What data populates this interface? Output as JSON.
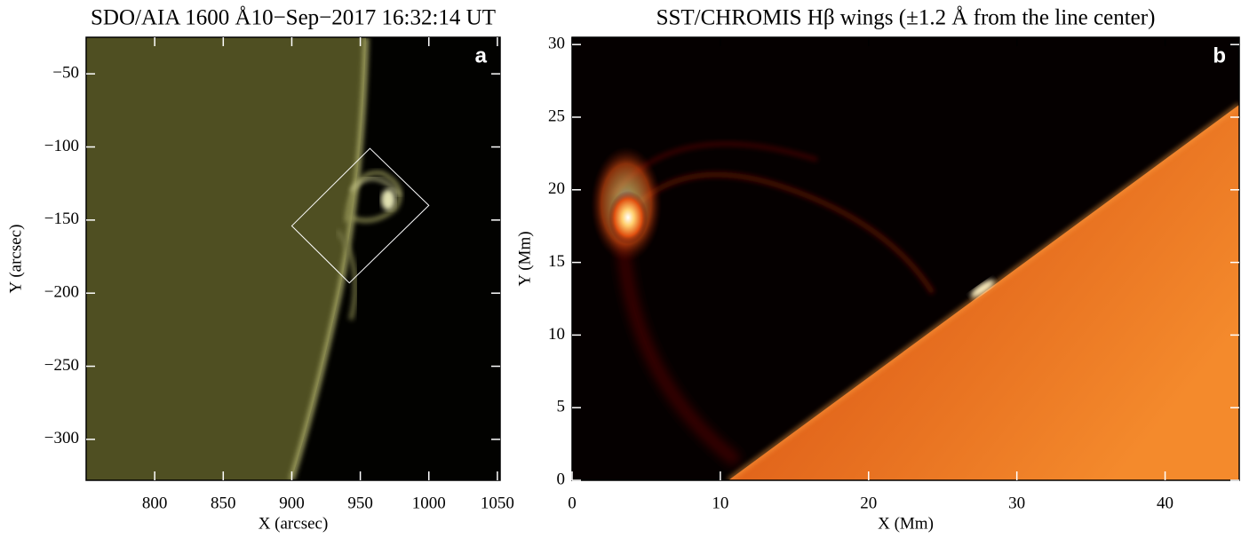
{
  "chart_data": [
    {
      "type": "image",
      "title": "SDO/AIA 1600 Å10−Sep−2017 16:32:14 UT",
      "panel_label": "a",
      "x_label": "X (arcsec)",
      "y_label": "Y (arcsec)",
      "xlim": [
        750,
        1052
      ],
      "ylim": [
        -328,
        -25
      ],
      "xticks": [
        800,
        850,
        900,
        950,
        1000,
        1050
      ],
      "yticks": [
        {
          "value": -50,
          "label": "−50"
        },
        {
          "value": -100,
          "label": "−100"
        },
        {
          "value": -150,
          "label": "−150"
        },
        {
          "value": -200,
          "label": "−200"
        },
        {
          "value": -250,
          "label": "−250"
        },
        {
          "value": -300,
          "label": "−300"
        }
      ],
      "box": {
        "x": [
          900,
          957,
          1000,
          942
        ],
        "y": [
          -154,
          -101,
          -140,
          -193
        ]
      }
    },
    {
      "type": "image",
      "title": "SST/CHROMIS Hβ wings (±1.2 Å from the line center)",
      "panel_label": "b",
      "x_label": "X (Mm)",
      "y_label": "Y (Mm)",
      "xlim": [
        0,
        45
      ],
      "ylim": [
        0,
        30.5
      ],
      "xticks": [
        0,
        10,
        20,
        30,
        40
      ],
      "yticks": [
        0,
        5,
        10,
        15,
        20,
        25,
        30
      ]
    }
  ]
}
